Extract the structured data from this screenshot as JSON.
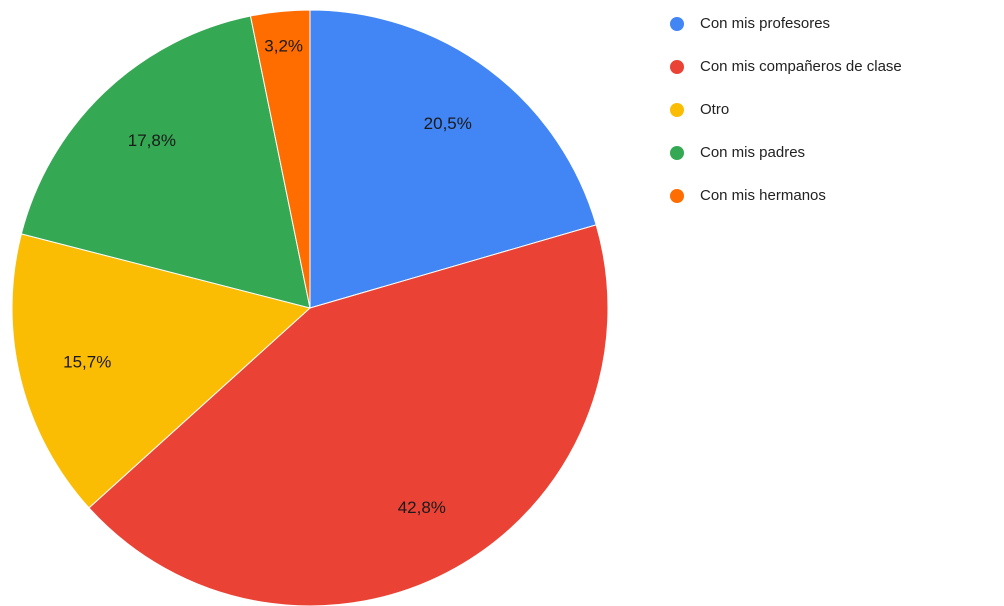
{
  "chart_data": {
    "type": "pie",
    "categories": [
      "Con mis profesores",
      "Con mis compañeros de clase",
      "Otro",
      "Con mis padres",
      "Con mis hermanos"
    ],
    "values": [
      20.5,
      42.8,
      15.7,
      17.8,
      3.2
    ],
    "value_labels": [
      "20,5%",
      "42,8%",
      "15,7%",
      "17,8%",
      "3,2%"
    ],
    "colors": [
      "#4285f4",
      "#ea4335",
      "#fbbc04",
      "#34a853",
      "#ff6d01"
    ],
    "legend": "right"
  }
}
